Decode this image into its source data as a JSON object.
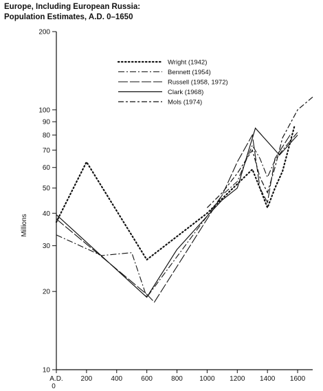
{
  "chart_data": {
    "type": "line",
    "title_line1": "Europe, Including European Russia:",
    "title_line2": "Population Estimates, A.D. 0–1650",
    "xlabel": "",
    "ylabel": "Millions",
    "y_scale": "log",
    "ylim": [
      10,
      200
    ],
    "xlim": [
      0,
      1700
    ],
    "x_ticks": [
      0,
      200,
      400,
      600,
      800,
      1000,
      1200,
      1400,
      1600
    ],
    "x_tick_labels": [
      "A.D.",
      "200",
      "400",
      "600",
      "800",
      "1000",
      "1200",
      "1400",
      "1600"
    ],
    "x_tick_sublabel": "0",
    "y_ticks": [
      10,
      20,
      30,
      40,
      50,
      60,
      70,
      80,
      90,
      100,
      200
    ],
    "y_tick_labels": [
      "10",
      "20",
      "30",
      "40",
      "50",
      "60",
      "70",
      "80",
      "90",
      "100",
      "200"
    ],
    "grid": false,
    "legend_position": "top-center",
    "series": [
      {
        "name": "Wright (1942)",
        "style": "dotted",
        "points": [
          [
            0,
            37
          ],
          [
            200,
            63
          ],
          [
            600,
            26.5
          ],
          [
            1000,
            40
          ],
          [
            1300,
            59
          ],
          [
            1350,
            50
          ],
          [
            1400,
            42
          ],
          [
            1450,
            50
          ],
          [
            1500,
            58
          ],
          [
            1580,
            87
          ]
        ]
      },
      {
        "name": "Bennett (1954)",
        "style": "dashdot",
        "points": [
          [
            0,
            33
          ],
          [
            300,
            27.5
          ],
          [
            500,
            28.2
          ],
          [
            600,
            19
          ],
          [
            1000,
            39
          ],
          [
            1100,
            47
          ],
          [
            1200,
            53
          ],
          [
            1300,
            73
          ],
          [
            1350,
            65
          ],
          [
            1400,
            55
          ],
          [
            1450,
            64
          ],
          [
            1500,
            70
          ],
          [
            1600,
            82
          ]
        ]
      },
      {
        "name": "Russell (1958, 1972)",
        "style": "longdash",
        "points": [
          [
            0,
            38
          ],
          [
            600,
            19.5
          ],
          [
            650,
            18.2
          ],
          [
            1000,
            38
          ],
          [
            1100,
            47
          ],
          [
            1200,
            63
          ],
          [
            1300,
            80
          ],
          [
            1350,
            50
          ],
          [
            1400,
            44
          ],
          [
            1450,
            65
          ],
          [
            1550,
            80
          ]
        ]
      },
      {
        "name": "Clark (1968)",
        "style": "solid",
        "points": [
          [
            0,
            39.5
          ],
          [
            600,
            19
          ],
          [
            800,
            29
          ],
          [
            1000,
            39
          ],
          [
            1100,
            45
          ],
          [
            1200,
            50
          ],
          [
            1320,
            85
          ],
          [
            1480,
            67
          ],
          [
            1600,
            80
          ]
        ]
      },
      {
        "name": "Mols (1974)",
        "style": "dashdash",
        "points": [
          [
            1000,
            42
          ],
          [
            1100,
            48
          ],
          [
            1200,
            57
          ],
          [
            1300,
            70
          ],
          [
            1350,
            55
          ],
          [
            1400,
            48
          ],
          [
            1450,
            60
          ],
          [
            1500,
            78
          ],
          [
            1600,
            100
          ],
          [
            1700,
            112
          ]
        ]
      }
    ]
  }
}
